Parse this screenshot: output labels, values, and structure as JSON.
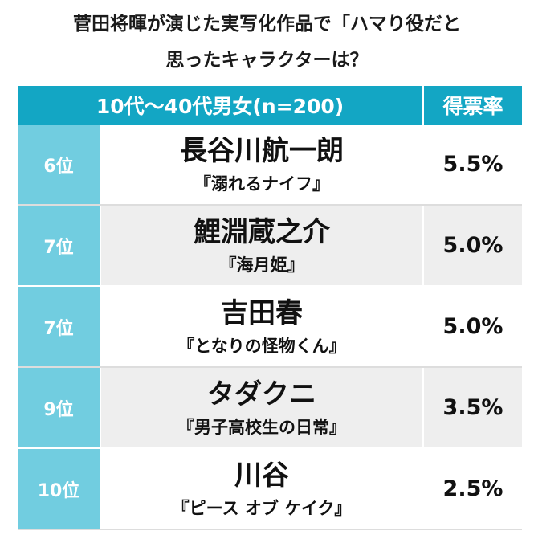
{
  "title_line1": "菅田将暉が演じた実写化作品で「ハマり役だと",
  "title_line2": "思ったキャラクターは？",
  "header": {
    "group": "10代〜40代男女(n=200)",
    "votes": "得票率"
  },
  "rows": [
    {
      "rank": "6位",
      "name": "長谷川航一朗",
      "work": "『溺れるナイフ』",
      "pct": "5.5%"
    },
    {
      "rank": "7位",
      "name": "鯉淵蔵之介",
      "work": "『海月姫』",
      "pct": "5.0%"
    },
    {
      "rank": "7位",
      "name": "吉田春",
      "work": "『となりの怪物くん』",
      "pct": "5.0%"
    },
    {
      "rank": "9位",
      "name": "タダクニ",
      "work": "『男子高校生の日常』",
      "pct": "3.5%"
    },
    {
      "rank": "10位",
      "name": "川谷",
      "work": "『ピース オブ ケイク』",
      "pct": "2.5%"
    }
  ]
}
